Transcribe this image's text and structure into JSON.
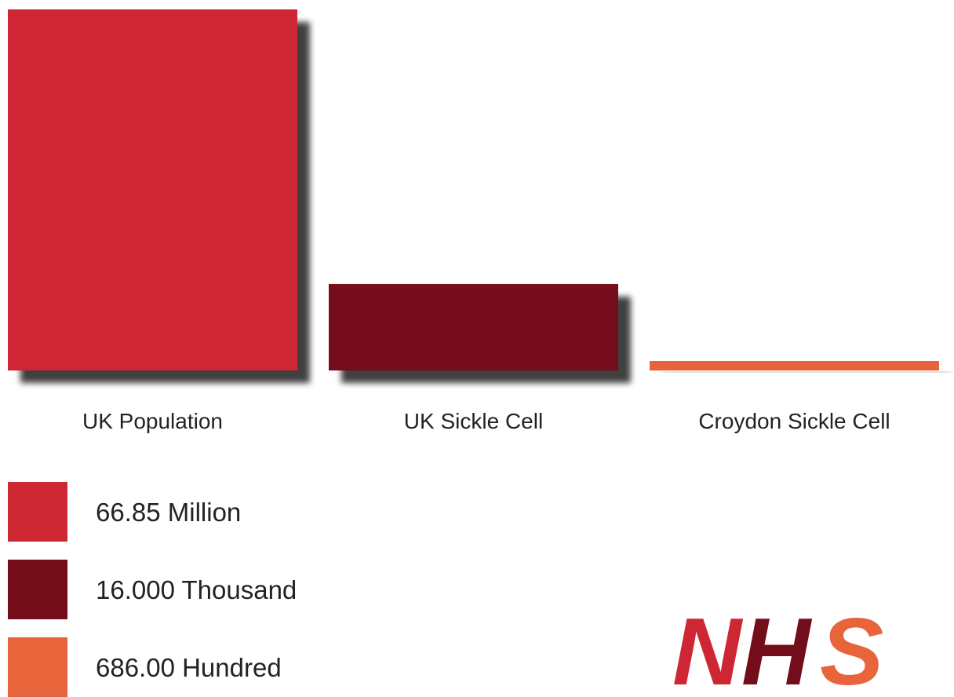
{
  "chart_data": {
    "type": "bar",
    "categories": [
      "UK Population",
      "UK Sickle Cell",
      "Croydon Sickle Cell"
    ],
    "values": [
      66.85,
      16.0,
      0.686
    ],
    "ylim": [
      0,
      66.85
    ],
    "grid": false,
    "colors": [
      "#CE2734",
      "#740D1A",
      "#E8643A"
    ],
    "legend": {
      "placement": "bottom-left",
      "entries": [
        {
          "label": "66.85 Million",
          "color": "#CE2734"
        },
        {
          "label": "16.000 Thousand",
          "color": "#740D1A"
        },
        {
          "label": "686.00 Hundred",
          "color": "#E8643A"
        }
      ]
    }
  },
  "logo": {
    "text": "NHS",
    "colors": [
      "#CE2734",
      "#740D1A",
      "#E8643A"
    ]
  }
}
